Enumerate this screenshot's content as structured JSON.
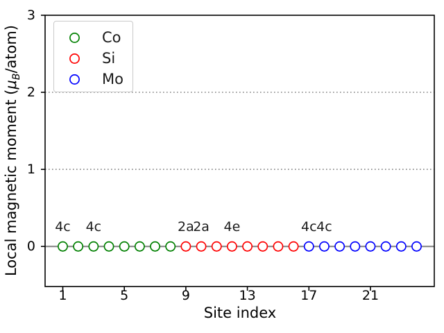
{
  "figure": {
    "background": "#ffffff",
    "spine_color": "#000000"
  },
  "chart_data": {
    "type": "scatter",
    "title": "",
    "xlabel": "Site index",
    "ylabel": "Local magnetic moment (μB/atom)",
    "ylabel_parts": {
      "prefix": "Local magnetic moment (",
      "mu": "μ",
      "mu_subscript": "B",
      "suffix": "/atom)"
    },
    "xlim": [
      -0.15,
      25.15
    ],
    "ylim": [
      -0.52,
      3.0
    ],
    "xticks": [
      1,
      5,
      9,
      13,
      17,
      21
    ],
    "yticks": [
      0,
      1,
      2,
      3
    ],
    "grid": {
      "y_values": [
        1,
        2
      ],
      "style": "dotted",
      "color": "#8a8a8a"
    },
    "zero_line": {
      "y": 0,
      "color": "#7f7f7f"
    },
    "marker_style": "open-circle",
    "series": [
      {
        "name": "Co",
        "color": "#008000",
        "x": [
          1,
          2,
          3,
          4,
          5,
          6,
          7,
          8
        ],
        "y": [
          0,
          0,
          0,
          0,
          0,
          0,
          0,
          0
        ]
      },
      {
        "name": "Si",
        "color": "#ff0000",
        "x": [
          9,
          10,
          11,
          12,
          13,
          14,
          15,
          16
        ],
        "y": [
          0,
          0,
          0,
          0,
          0,
          0,
          0,
          0
        ]
      },
      {
        "name": "Mo",
        "color": "#0000ff",
        "x": [
          17,
          18,
          19,
          20,
          21,
          22,
          23,
          24
        ],
        "y": [
          0,
          0,
          0,
          0,
          0,
          0,
          0,
          0
        ]
      }
    ],
    "annotations": [
      {
        "x": 1,
        "y": 0,
        "label": "4c"
      },
      {
        "x": 3,
        "y": 0,
        "label": "4c"
      },
      {
        "x": 9,
        "y": 0,
        "label": "2a"
      },
      {
        "x": 10,
        "y": 0,
        "label": "2a"
      },
      {
        "x": 12,
        "y": 0,
        "label": "4e"
      },
      {
        "x": 17,
        "y": 0,
        "label": "4c"
      },
      {
        "x": 18,
        "y": 0,
        "label": "4c"
      }
    ],
    "legend": {
      "location": "upper left",
      "entries": [
        {
          "label": "Co",
          "color": "#008000"
        },
        {
          "label": "Si",
          "color": "#ff0000"
        },
        {
          "label": "Mo",
          "color": "#0000ff"
        }
      ]
    }
  }
}
